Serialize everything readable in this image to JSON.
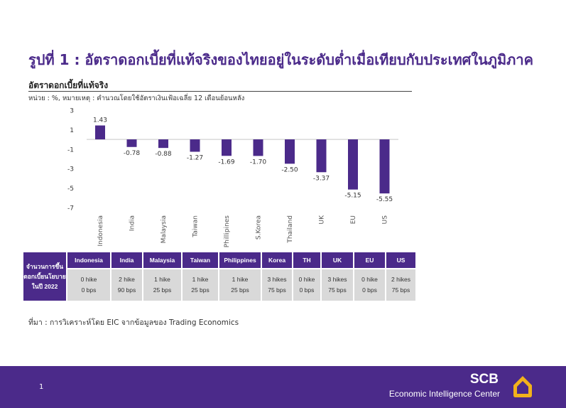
{
  "title": "รูปที่ 1 : อัตราดอกเบี้ยที่แท้จริงของไทยอยู่ในระดับต่ำเมื่อเทียบกับประเทศในภูมิภาค",
  "subtitle": "อัตราดอกเบี้ยที่แท้จริง",
  "note": "หน่วย : %, หมายเหตุ : คำนวณโดยใช้อัตราเงินเฟ้อเฉลี่ย 12 เดือนย้อนหลัง",
  "colors": {
    "bar": "#4b2a8a",
    "footer": "#4b2a8a",
    "logo": "#f2b21b"
  },
  "chart_data": {
    "type": "bar",
    "title": "อัตราดอกเบี้ยที่แท้จริง",
    "categories": [
      "Indonesia",
      "India",
      "Malaysia",
      "Taiwan",
      "Phillipines",
      "S.Korea",
      "Thailand",
      "UK",
      "EU",
      "US"
    ],
    "values": [
      1.43,
      -0.78,
      -0.88,
      -1.27,
      -1.69,
      -1.7,
      -2.5,
      -3.37,
      -5.15,
      -5.55
    ],
    "value_labels": [
      "1.43",
      "-0.78",
      "-0.88",
      "-1.27",
      "-1.69",
      "-1.70",
      "-2.50",
      "-3.37",
      "-5.15",
      "-5.55"
    ],
    "yticks": [
      "3",
      "1",
      "-1",
      "-3",
      "-5",
      "-7"
    ],
    "ylim": [
      -7,
      3
    ],
    "grid": false
  },
  "table": {
    "row_header": "จำนวนการขึ้นดอกเบี้ยนโยบายในปี 2022",
    "columns": [
      {
        "name": "Indonesia",
        "hikes": "0 hike",
        "bps": "0 bps"
      },
      {
        "name": "India",
        "hikes": "2 hike",
        "bps": "90 bps"
      },
      {
        "name": "Malaysia",
        "hikes": "1 hike",
        "bps": "25 bps"
      },
      {
        "name": "Taiwan",
        "hikes": "1 hike",
        "bps": "25 bps"
      },
      {
        "name": "Philippines",
        "hikes": "1 hike",
        "bps": "25 bps"
      },
      {
        "name": "Korea",
        "hikes": "3 hikes",
        "bps": "75 bps"
      },
      {
        "name": "TH",
        "hikes": "0 hike",
        "bps": "0 bps"
      },
      {
        "name": "UK",
        "hikes": "3 hikes",
        "bps": "75 bps"
      },
      {
        "name": "EU",
        "hikes": "0 hike",
        "bps": "0 bps"
      },
      {
        "name": "US",
        "hikes": "2 hikes",
        "bps": "75 bps"
      }
    ]
  },
  "source": "ที่มา : การวิเคราะห์โดย EIC จากข้อมูลของ Trading Economics",
  "footer": {
    "page_number": "1",
    "brand": "SCB",
    "brand_sub": "Economic Intelligence Center",
    "logo_icon": "scb-house-icon"
  }
}
